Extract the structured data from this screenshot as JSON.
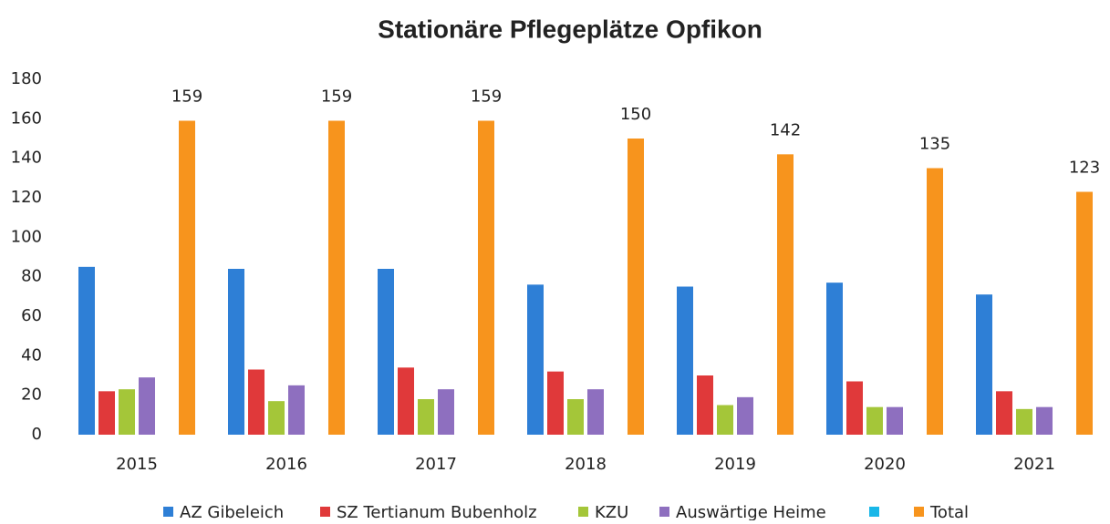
{
  "chart_data": {
    "type": "bar",
    "title": "Stationäre Pflegeplätze Opfikon",
    "categories": [
      "2015",
      "2016",
      "2017",
      "2018",
      "2019",
      "2020",
      "2021"
    ],
    "series": [
      {
        "name": "AZ Gibeleich",
        "color": "#2e7fd6",
        "values": [
          85,
          84,
          84,
          76,
          75,
          77,
          71
        ]
      },
      {
        "name": "SZ Tertianum Bubenholz",
        "color": "#e0393a",
        "values": [
          22,
          33,
          34,
          32,
          30,
          27,
          22
        ]
      },
      {
        "name": "KZU",
        "color": "#a4c639",
        "values": [
          23,
          17,
          18,
          18,
          15,
          14,
          13
        ]
      },
      {
        "name": "Auswärtige Heime",
        "color": "#8e6fbf",
        "values": [
          29,
          25,
          23,
          23,
          19,
          14,
          14
        ]
      },
      {
        "name": null,
        "color": "#19b7e8",
        "values": [
          null,
          null,
          null,
          null,
          null,
          null,
          null
        ]
      },
      {
        "name": "Total",
        "color": "#f7941d",
        "values": [
          159,
          159,
          159,
          150,
          142,
          135,
          123
        ],
        "data_labels": true
      }
    ],
    "ylim": [
      0,
      180
    ],
    "yticks": [
      0,
      20,
      40,
      60,
      80,
      100,
      120,
      140,
      160,
      180
    ],
    "grid": false,
    "legend": "bottom"
  }
}
